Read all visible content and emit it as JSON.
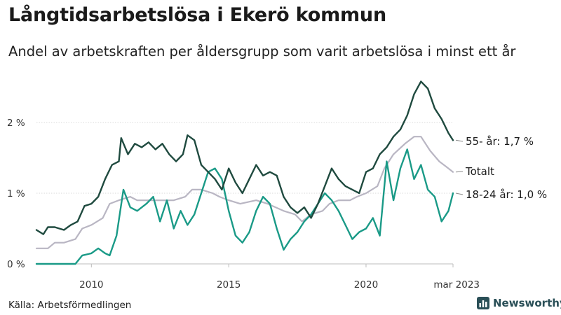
{
  "header": {
    "title": "Långtidsarbetslösa i Ekerö kommun",
    "subtitle": "Andel av arbetskraften per åldersgrupp som varit arbetslösa i minst ett år"
  },
  "footer": {
    "source": "Källa: Arbetsförmedlingen",
    "brand": "Newsworthy"
  },
  "colors": {
    "series_55": "#1f4a3f",
    "series_total": "#b9b6c3",
    "series_18_24": "#1a9a87",
    "brand": "#2a4f57"
  },
  "icons": {
    "brand": "bar-chart-icon"
  },
  "chart_data": {
    "type": "line",
    "title": "Långtidsarbetslösa i Ekerö kommun",
    "subtitle": "Andel av arbetskraften per åldersgrupp som varit arbetslösa i minst ett år",
    "xlabel": "",
    "ylabel": "",
    "x_range": [
      "2008-01",
      "2023-03"
    ],
    "x_ticks": [
      {
        "x": "2010-01",
        "label": "2010"
      },
      {
        "x": "2015-01",
        "label": "2015"
      },
      {
        "x": "2020-01",
        "label": "2020"
      },
      {
        "x": "2023-03",
        "label": "mar 2023"
      }
    ],
    "y_range": [
      0,
      2.6
    ],
    "y_ticks": [
      {
        "y": 0,
        "label": "0 %"
      },
      {
        "y": 1,
        "label": "1 %"
      },
      {
        "y": 2,
        "label": "2 %"
      }
    ],
    "grid": "horizontal",
    "legend": "end-labels",
    "series": [
      {
        "name": "55- år",
        "end_label": "55- år: 1,7 %",
        "color": "#1f4a3f",
        "points": [
          [
            "2008-01",
            0.48
          ],
          [
            "2008-04",
            0.42
          ],
          [
            "2008-06",
            0.52
          ],
          [
            "2008-09",
            0.52
          ],
          [
            "2009-01",
            0.48
          ],
          [
            "2009-04",
            0.55
          ],
          [
            "2009-07",
            0.6
          ],
          [
            "2009-10",
            0.82
          ],
          [
            "2010-01",
            0.85
          ],
          [
            "2010-04",
            0.95
          ],
          [
            "2010-07",
            1.2
          ],
          [
            "2010-10",
            1.4
          ],
          [
            "2011-01",
            1.45
          ],
          [
            "2011-02",
            1.78
          ],
          [
            "2011-05",
            1.55
          ],
          [
            "2011-08",
            1.7
          ],
          [
            "2011-11",
            1.65
          ],
          [
            "2012-02",
            1.72
          ],
          [
            "2012-05",
            1.62
          ],
          [
            "2012-08",
            1.7
          ],
          [
            "2012-11",
            1.55
          ],
          [
            "2013-02",
            1.45
          ],
          [
            "2013-05",
            1.55
          ],
          [
            "2013-07",
            1.82
          ],
          [
            "2013-10",
            1.75
          ],
          [
            "2014-01",
            1.4
          ],
          [
            "2014-04",
            1.3
          ],
          [
            "2014-07",
            1.2
          ],
          [
            "2014-10",
            1.05
          ],
          [
            "2015-01",
            1.35
          ],
          [
            "2015-04",
            1.15
          ],
          [
            "2015-07",
            1.0
          ],
          [
            "2015-10",
            1.2
          ],
          [
            "2016-01",
            1.4
          ],
          [
            "2016-04",
            1.25
          ],
          [
            "2016-07",
            1.3
          ],
          [
            "2016-10",
            1.25
          ],
          [
            "2017-01",
            0.95
          ],
          [
            "2017-04",
            0.8
          ],
          [
            "2017-07",
            0.72
          ],
          [
            "2017-10",
            0.8
          ],
          [
            "2018-01",
            0.65
          ],
          [
            "2018-04",
            0.85
          ],
          [
            "2018-07",
            1.1
          ],
          [
            "2018-10",
            1.35
          ],
          [
            "2019-01",
            1.2
          ],
          [
            "2019-04",
            1.1
          ],
          [
            "2019-07",
            1.05
          ],
          [
            "2019-10",
            1.0
          ],
          [
            "2020-01",
            1.3
          ],
          [
            "2020-04",
            1.35
          ],
          [
            "2020-07",
            1.55
          ],
          [
            "2020-10",
            1.65
          ],
          [
            "2021-01",
            1.8
          ],
          [
            "2021-04",
            1.9
          ],
          [
            "2021-07",
            2.1
          ],
          [
            "2021-10",
            2.4
          ],
          [
            "2022-01",
            2.58
          ],
          [
            "2022-04",
            2.48
          ],
          [
            "2022-07",
            2.2
          ],
          [
            "2022-10",
            2.05
          ],
          [
            "2023-01",
            1.85
          ],
          [
            "2023-03",
            1.75
          ]
        ]
      },
      {
        "name": "Totalt",
        "end_label": "Totalt",
        "color": "#b9b6c3",
        "points": [
          [
            "2008-01",
            0.22
          ],
          [
            "2008-06",
            0.22
          ],
          [
            "2008-09",
            0.3
          ],
          [
            "2009-01",
            0.3
          ],
          [
            "2009-06",
            0.35
          ],
          [
            "2009-09",
            0.5
          ],
          [
            "2010-01",
            0.55
          ],
          [
            "2010-06",
            0.65
          ],
          [
            "2010-09",
            0.85
          ],
          [
            "2011-01",
            0.9
          ],
          [
            "2011-06",
            0.95
          ],
          [
            "2011-09",
            0.9
          ],
          [
            "2012-01",
            0.9
          ],
          [
            "2012-06",
            0.9
          ],
          [
            "2013-01",
            0.9
          ],
          [
            "2013-06",
            0.95
          ],
          [
            "2013-09",
            1.05
          ],
          [
            "2014-01",
            1.05
          ],
          [
            "2014-06",
            1.0
          ],
          [
            "2014-09",
            0.95
          ],
          [
            "2015-01",
            0.9
          ],
          [
            "2015-06",
            0.85
          ],
          [
            "2016-01",
            0.9
          ],
          [
            "2016-06",
            0.85
          ],
          [
            "2017-01",
            0.75
          ],
          [
            "2017-06",
            0.7
          ],
          [
            "2017-09",
            0.6
          ],
          [
            "2018-01",
            0.7
          ],
          [
            "2018-06",
            0.75
          ],
          [
            "2018-09",
            0.85
          ],
          [
            "2019-01",
            0.9
          ],
          [
            "2019-06",
            0.9
          ],
          [
            "2019-09",
            0.95
          ],
          [
            "2020-01",
            1.0
          ],
          [
            "2020-06",
            1.1
          ],
          [
            "2020-09",
            1.35
          ],
          [
            "2021-01",
            1.55
          ],
          [
            "2021-06",
            1.7
          ],
          [
            "2021-10",
            1.8
          ],
          [
            "2022-01",
            1.8
          ],
          [
            "2022-05",
            1.6
          ],
          [
            "2022-09",
            1.45
          ],
          [
            "2023-01",
            1.35
          ],
          [
            "2023-03",
            1.3
          ]
        ]
      },
      {
        "name": "18-24 år",
        "end_label": "18-24 år: 1,0 %",
        "color": "#1a9a87",
        "points": [
          [
            "2008-01",
            0.0
          ],
          [
            "2008-06",
            0.0
          ],
          [
            "2009-01",
            0.0
          ],
          [
            "2009-06",
            0.0
          ],
          [
            "2009-09",
            0.12
          ],
          [
            "2010-01",
            0.15
          ],
          [
            "2010-04",
            0.22
          ],
          [
            "2010-07",
            0.15
          ],
          [
            "2010-09",
            0.12
          ],
          [
            "2010-12",
            0.4
          ],
          [
            "2011-03",
            1.05
          ],
          [
            "2011-06",
            0.8
          ],
          [
            "2011-09",
            0.75
          ],
          [
            "2012-01",
            0.85
          ],
          [
            "2012-04",
            0.95
          ],
          [
            "2012-07",
            0.6
          ],
          [
            "2012-10",
            0.9
          ],
          [
            "2013-01",
            0.5
          ],
          [
            "2013-04",
            0.75
          ],
          [
            "2013-07",
            0.55
          ],
          [
            "2013-10",
            0.7
          ],
          [
            "2014-01",
            1.0
          ],
          [
            "2014-04",
            1.3
          ],
          [
            "2014-07",
            1.35
          ],
          [
            "2014-10",
            1.2
          ],
          [
            "2015-01",
            0.75
          ],
          [
            "2015-04",
            0.4
          ],
          [
            "2015-07",
            0.3
          ],
          [
            "2015-10",
            0.45
          ],
          [
            "2016-01",
            0.75
          ],
          [
            "2016-04",
            0.95
          ],
          [
            "2016-07",
            0.85
          ],
          [
            "2016-10",
            0.5
          ],
          [
            "2017-01",
            0.2
          ],
          [
            "2017-04",
            0.35
          ],
          [
            "2017-07",
            0.45
          ],
          [
            "2017-10",
            0.6
          ],
          [
            "2018-01",
            0.7
          ],
          [
            "2018-04",
            0.85
          ],
          [
            "2018-07",
            1.0
          ],
          [
            "2018-10",
            0.9
          ],
          [
            "2019-01",
            0.75
          ],
          [
            "2019-04",
            0.55
          ],
          [
            "2019-07",
            0.35
          ],
          [
            "2019-10",
            0.45
          ],
          [
            "2020-01",
            0.5
          ],
          [
            "2020-04",
            0.65
          ],
          [
            "2020-07",
            0.4
          ],
          [
            "2020-10",
            1.45
          ],
          [
            "2021-01",
            0.9
          ],
          [
            "2021-04",
            1.35
          ],
          [
            "2021-07",
            1.62
          ],
          [
            "2021-10",
            1.2
          ],
          [
            "2022-01",
            1.4
          ],
          [
            "2022-04",
            1.05
          ],
          [
            "2022-07",
            0.95
          ],
          [
            "2022-10",
            0.6
          ],
          [
            "2023-01",
            0.75
          ],
          [
            "2023-03",
            1.0
          ]
        ]
      }
    ]
  }
}
